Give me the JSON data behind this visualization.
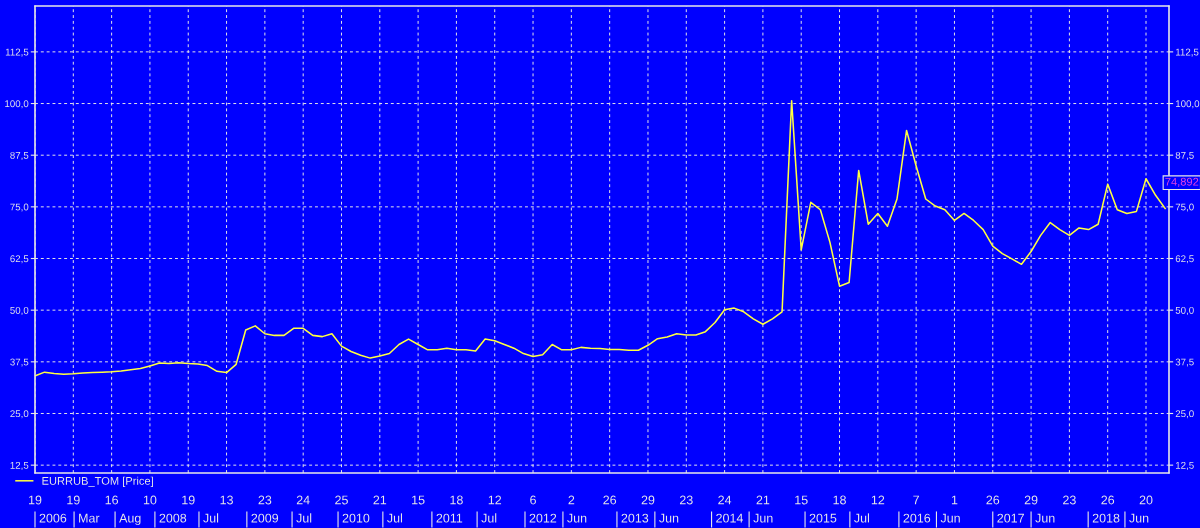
{
  "chart_data": {
    "type": "line",
    "categories": [
      "19",
      null,
      null,
      null,
      "19",
      null,
      null,
      null,
      "16",
      null,
      null,
      null,
      "10",
      null,
      null,
      null,
      "19",
      null,
      null,
      null,
      "13",
      null,
      null,
      null,
      "23",
      null,
      null,
      null,
      "24",
      null,
      null,
      null,
      "25",
      null,
      null,
      null,
      "21",
      null,
      null,
      null,
      "15",
      null,
      null,
      null,
      "18",
      null,
      null,
      null,
      "12",
      null,
      null,
      null,
      "6",
      null,
      null,
      null,
      "2",
      null,
      null,
      null,
      "26",
      null,
      null,
      null,
      "29",
      null,
      null,
      null,
      "23",
      null,
      null,
      null,
      "24",
      null,
      null,
      null,
      "21",
      null,
      null,
      null,
      "15",
      null,
      null,
      null,
      "18",
      null,
      null,
      null,
      "12",
      null,
      null,
      null,
      "7",
      null,
      null,
      null,
      "1",
      null,
      null,
      null,
      "26",
      null,
      null,
      null,
      "29",
      null,
      null,
      null,
      "23",
      null,
      null,
      null,
      "26",
      null,
      null,
      null,
      "20",
      null,
      null
    ],
    "series": [
      {
        "name": "EURRUB_TOM [Price]",
        "color": "#ffff40",
        "values": [
          34.1,
          35.0,
          34.7,
          34.5,
          34.6,
          34.8,
          34.9,
          35.0,
          35.1,
          35.3,
          35.6,
          35.9,
          36.5,
          37.2,
          37.1,
          37.3,
          37.1,
          37.0,
          36.6,
          35.2,
          34.9,
          36.9,
          45.2,
          46.2,
          44.3,
          43.9,
          43.9,
          45.6,
          45.6,
          43.9,
          43.6,
          44.3,
          41.3,
          40.0,
          39.1,
          38.4,
          38.9,
          39.5,
          41.7,
          43.0,
          41.7,
          40.4,
          40.4,
          40.8,
          40.4,
          40.4,
          40.1,
          43.0,
          42.6,
          41.7,
          40.8,
          39.5,
          38.8,
          39.2,
          41.7,
          40.4,
          40.4,
          41.0,
          40.8,
          40.7,
          40.5,
          40.5,
          40.3,
          40.3,
          41.5,
          43.1,
          43.5,
          44.3,
          44.0,
          44.0,
          44.8,
          47.0,
          50.1,
          50.5,
          49.6,
          47.9,
          46.6,
          47.9,
          49.6,
          100.7,
          64.6,
          76.1,
          74.3,
          66.4,
          55.8,
          56.7,
          83.8,
          70.8,
          73.4,
          70.3,
          76.9,
          93.5,
          84.9,
          76.9,
          75.2,
          74.3,
          71.7,
          73.4,
          71.7,
          69.5,
          65.5,
          63.7,
          62.4,
          61.1,
          64.2,
          68.1,
          71.2,
          69.5,
          68.1,
          69.9,
          69.5,
          70.8,
          80.5,
          74.3,
          73.4,
          73.9,
          81.8,
          77.8,
          74.6
        ]
      }
    ],
    "ylim": [
      10.6,
      123.6
    ],
    "yticks": [
      {
        "value": 12.5,
        "label": "12,5"
      },
      {
        "value": 25,
        "label": "25,0"
      },
      {
        "value": 37.5,
        "label": "37,5"
      },
      {
        "value": 50,
        "label": "50,0"
      },
      {
        "value": 62.5,
        "label": "62,5"
      },
      {
        "value": 75,
        "label": "75,0"
      },
      {
        "value": 87.5,
        "label": "87,5"
      },
      {
        "value": 100,
        "label": "100,0"
      },
      {
        "value": 112.5,
        "label": "112,5"
      }
    ],
    "y2lim": [
      10.6,
      123.6
    ],
    "y2ticks": [
      {
        "value": 12.5,
        "label": "12,5"
      },
      {
        "value": 25,
        "label": "25,0"
      },
      {
        "value": 37.5,
        "label": "37,5"
      },
      {
        "value": 50,
        "label": "50,0"
      },
      {
        "value": 62.5,
        "label": "62,5"
      },
      {
        "value": 75,
        "label": "75,0"
      },
      {
        "value": 87.5,
        "label": "87,5"
      },
      {
        "value": 100,
        "label": "100,0"
      },
      {
        "value": 112.5,
        "label": "112,5"
      }
    ],
    "annotations": [
      "74,892",
      "2006",
      "Mar",
      "Aug",
      "2008",
      "Jul",
      "2009",
      "Jul",
      "2010",
      "Jul",
      "2011",
      "Jul",
      "2012",
      "Jun",
      "2013",
      "Jun",
      "2014",
      "Jun",
      "2015",
      "Jul",
      "2016",
      "Jun",
      "2017",
      "Jun",
      "2018",
      "Jun"
    ],
    "grid": true,
    "legend": "bottom left",
    "line_style": "solid",
    "marker": "none"
  }
}
